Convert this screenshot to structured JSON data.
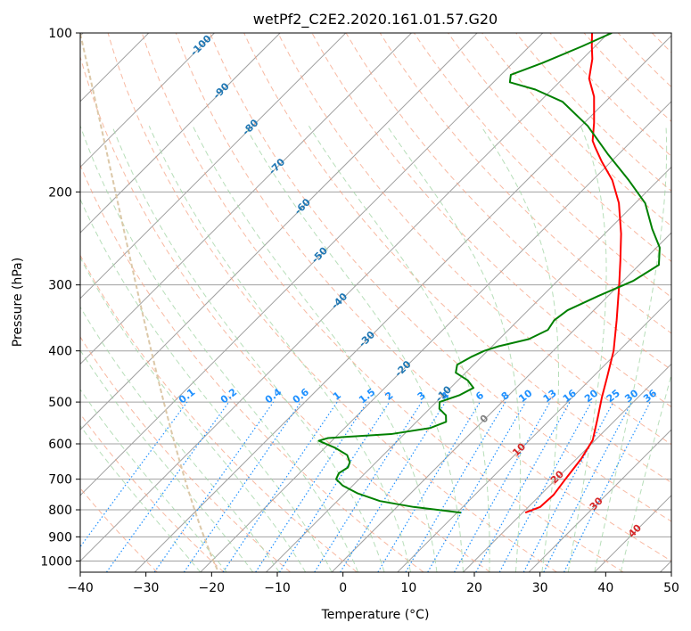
{
  "chart_data": {
    "type": "line",
    "title": "wetPf2_C2E2.2020.161.01.57.G20",
    "xlabel": "Temperature (°C)",
    "ylabel": "Pressure (hPa)",
    "xlim": [
      -40,
      50
    ],
    "ylim": [
      1050,
      100
    ],
    "y_scale": "log",
    "grid": true,
    "x_ticks": [
      "−40",
      "−30",
      "−20",
      "−10",
      "0",
      "10",
      "20",
      "30",
      "40",
      "50"
    ],
    "y_ticks": [
      "100",
      "200",
      "300",
      "400",
      "500",
      "600",
      "700",
      "800",
      "900",
      "1000"
    ],
    "skew": "skew-T log-P",
    "series": [
      {
        "color": "#ff0000",
        "points": [
          {
            "p": 810,
            "t": 20.4
          },
          {
            "p": 790,
            "t": 21.8
          },
          {
            "p": 750,
            "t": 22.0
          },
          {
            "p": 700,
            "t": 21.4
          },
          {
            "p": 640,
            "t": 20.7
          },
          {
            "p": 590,
            "t": 19.6
          },
          {
            "p": 540,
            "t": 17.2
          },
          {
            "p": 490,
            "t": 14.5
          },
          {
            "p": 450,
            "t": 12.3
          },
          {
            "p": 400,
            "t": 9.2
          },
          {
            "p": 350,
            "t": 5.0
          },
          {
            "p": 300,
            "t": 0.0
          },
          {
            "p": 270,
            "t": -3.5
          },
          {
            "p": 240,
            "t": -7.5
          },
          {
            "p": 210,
            "t": -12.5
          },
          {
            "p": 190,
            "t": -17.0
          },
          {
            "p": 175,
            "t": -21.5
          },
          {
            "p": 165,
            "t": -24.5
          },
          {
            "p": 160,
            "t": -26.0
          },
          {
            "p": 148,
            "t": -28.5
          },
          {
            "p": 132,
            "t": -32.5
          },
          {
            "p": 122,
            "t": -36.0
          },
          {
            "p": 112,
            "t": -38.5
          },
          {
            "p": 106,
            "t": -40.5
          },
          {
            "p": 100,
            "t": -42.5
          }
        ]
      },
      {
        "color": "#008000",
        "points": [
          {
            "p": 810,
            "t": 10.6
          },
          {
            "p": 790,
            "t": 2.5
          },
          {
            "p": 770,
            "t": -3.5
          },
          {
            "p": 745,
            "t": -8.0
          },
          {
            "p": 720,
            "t": -11.5
          },
          {
            "p": 700,
            "t": -13.5
          },
          {
            "p": 682,
            "t": -14.0
          },
          {
            "p": 665,
            "t": -13.5
          },
          {
            "p": 650,
            "t": -14.0
          },
          {
            "p": 630,
            "t": -15.5
          },
          {
            "p": 610,
            "t": -18.5
          },
          {
            "p": 592,
            "t": -22.0
          },
          {
            "p": 585,
            "t": -21.0
          },
          {
            "p": 575,
            "t": -12.0
          },
          {
            "p": 560,
            "t": -7.0
          },
          {
            "p": 545,
            "t": -5.5
          },
          {
            "p": 530,
            "t": -6.5
          },
          {
            "p": 515,
            "t": -8.5
          },
          {
            "p": 500,
            "t": -9.5
          },
          {
            "p": 485,
            "t": -7.5
          },
          {
            "p": 470,
            "t": -6.5
          },
          {
            "p": 455,
            "t": -8.5
          },
          {
            "p": 440,
            "t": -11.5
          },
          {
            "p": 425,
            "t": -12.5
          },
          {
            "p": 410,
            "t": -11.5
          },
          {
            "p": 400,
            "t": -10.5
          },
          {
            "p": 392,
            "t": -9.0
          },
          {
            "p": 380,
            "t": -5.5
          },
          {
            "p": 365,
            "t": -4.0
          },
          {
            "p": 350,
            "t": -4.5
          },
          {
            "p": 335,
            "t": -4.0
          },
          {
            "p": 315,
            "t": -1.5
          },
          {
            "p": 295,
            "t": 1.5
          },
          {
            "p": 275,
            "t": 3.0
          },
          {
            "p": 255,
            "t": 0.5
          },
          {
            "p": 235,
            "t": -3.5
          },
          {
            "p": 210,
            "t": -8.5
          },
          {
            "p": 190,
            "t": -14.5
          },
          {
            "p": 170,
            "t": -21.5
          },
          {
            "p": 150,
            "t": -29.0
          },
          {
            "p": 135,
            "t": -36.5
          },
          {
            "p": 128,
            "t": -42.5
          },
          {
            "p": 124,
            "t": -47.5
          },
          {
            "p": 120,
            "t": -48.5
          },
          {
            "p": 114,
            "t": -45.5
          },
          {
            "p": 106,
            "t": -42.0
          },
          {
            "p": 100,
            "t": -39.5
          }
        ]
      }
    ],
    "dry_adiabat_labels": [
      "-100",
      "-90",
      "-80",
      "-70",
      "-60",
      "-50",
      "-40",
      "-30",
      "-20",
      "-10",
      "0",
      "10",
      "20",
      "30",
      "40"
    ],
    "mixing_ratio_labels": [
      "0.1",
      "0.2",
      "0.4",
      "0.6",
      "1",
      "1.5",
      "2",
      "3",
      "4",
      "6",
      "8",
      "10",
      "13",
      "16",
      "20",
      "25",
      "30",
      "36"
    ],
    "colors": {
      "temperature": "#ff0000",
      "dewpoint": "#008000",
      "isotherm": "#a0a0a0",
      "isobar": "#a0a0a0",
      "dry_adiabat": "#f5a183",
      "moist_adiabat": "#a5d6a7",
      "mixing_ratio": "#1e90ff",
      "theta_label_cold": "#1f77b4",
      "theta_label_warm": "#d62728",
      "zero_label": "#808080",
      "left_curve": "#dcc8a8"
    }
  }
}
